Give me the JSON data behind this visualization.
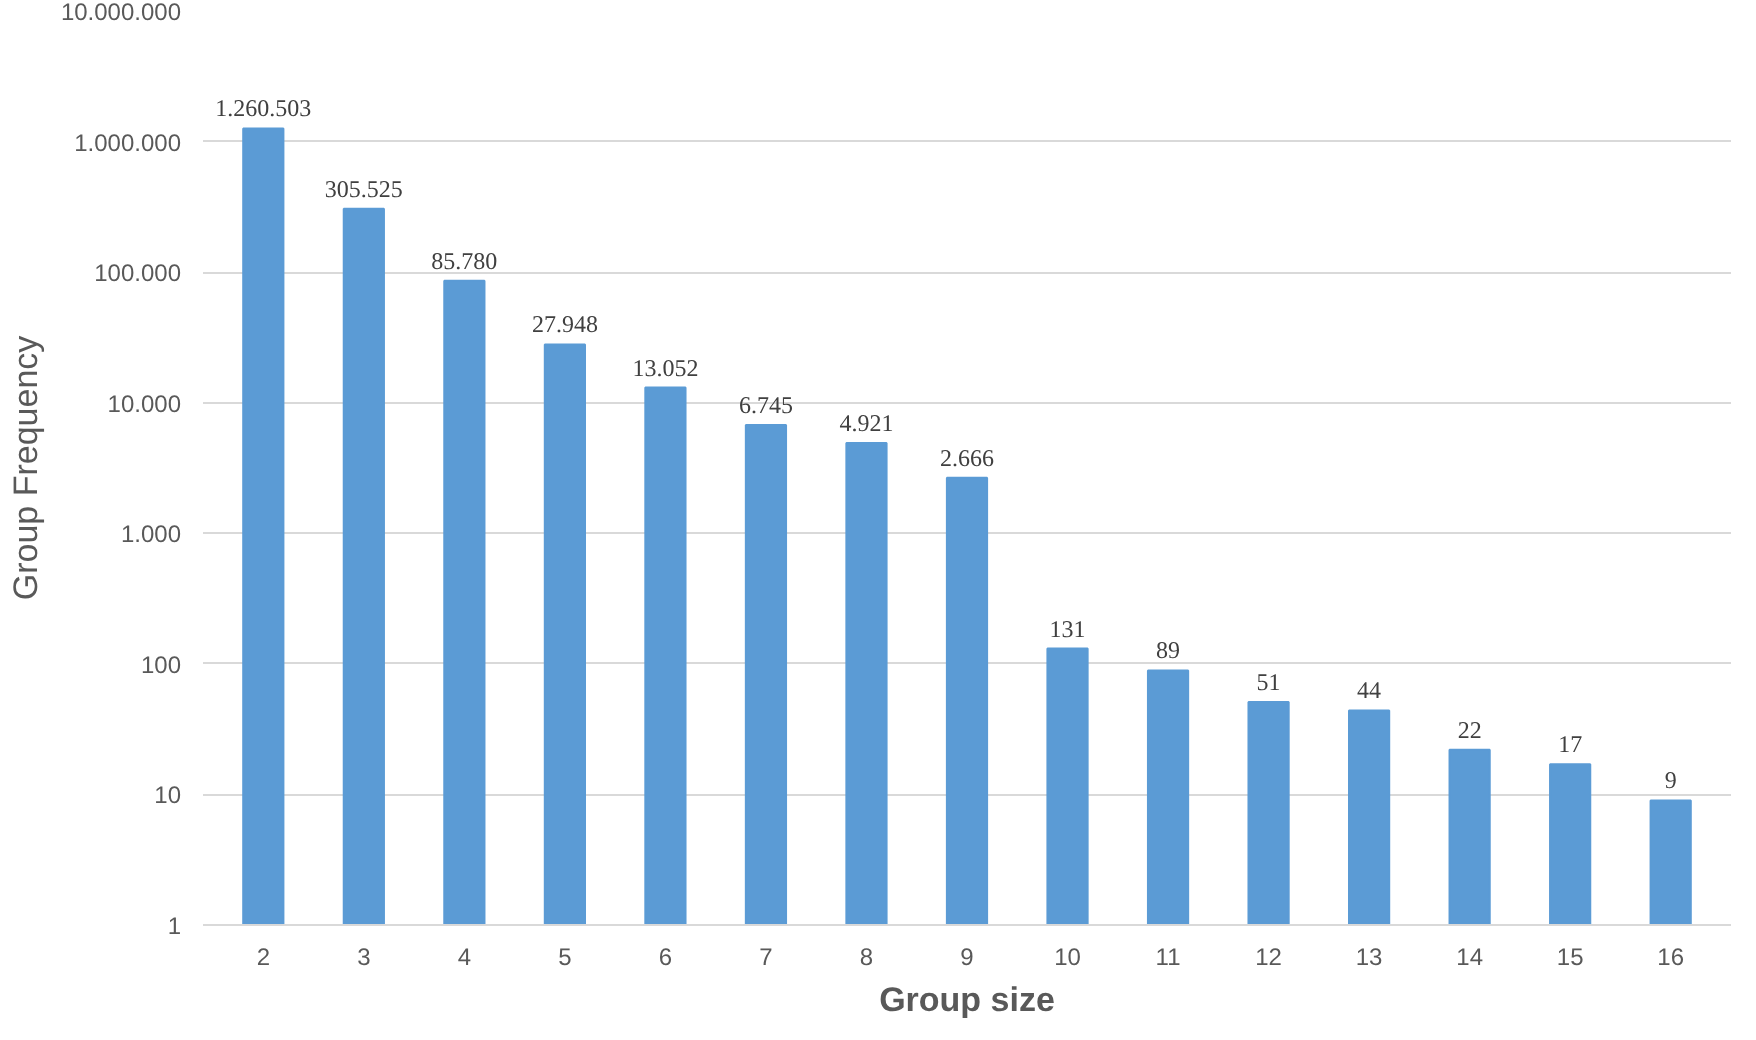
{
  "chart_data": {
    "type": "bar",
    "xlabel": "Group size",
    "ylabel": "Group Frequency",
    "categories": [
      "2",
      "3",
      "4",
      "5",
      "6",
      "7",
      "8",
      "9",
      "10",
      "11",
      "12",
      "13",
      "14",
      "15",
      "16"
    ],
    "values": [
      1260503,
      305525,
      85780,
      27948,
      13052,
      6745,
      4921,
      2666,
      131,
      89,
      51,
      44,
      22,
      17,
      9
    ],
    "value_labels": [
      "1.260.503",
      "305.525",
      "85.780",
      "27.948",
      "13.052",
      "6.745",
      "4.921",
      "2.666",
      "131",
      "89",
      "51",
      "44",
      "22",
      "17",
      "9"
    ],
    "color": "#5b9bd5",
    "log": "y",
    "ylim": [
      1,
      10000000
    ],
    "yticks": [
      1,
      10,
      100,
      {
        "value": 1000,
        "label": "1.000"
      },
      {
        "value": 10000,
        "label": "10.000"
      },
      {
        "value": 100000,
        "label": "100.000"
      },
      {
        "value": 1000000,
        "label": "1.000.000"
      },
      {
        "value": 10000000,
        "label": "10.000.000"
      }
    ],
    "grid": "y"
  }
}
